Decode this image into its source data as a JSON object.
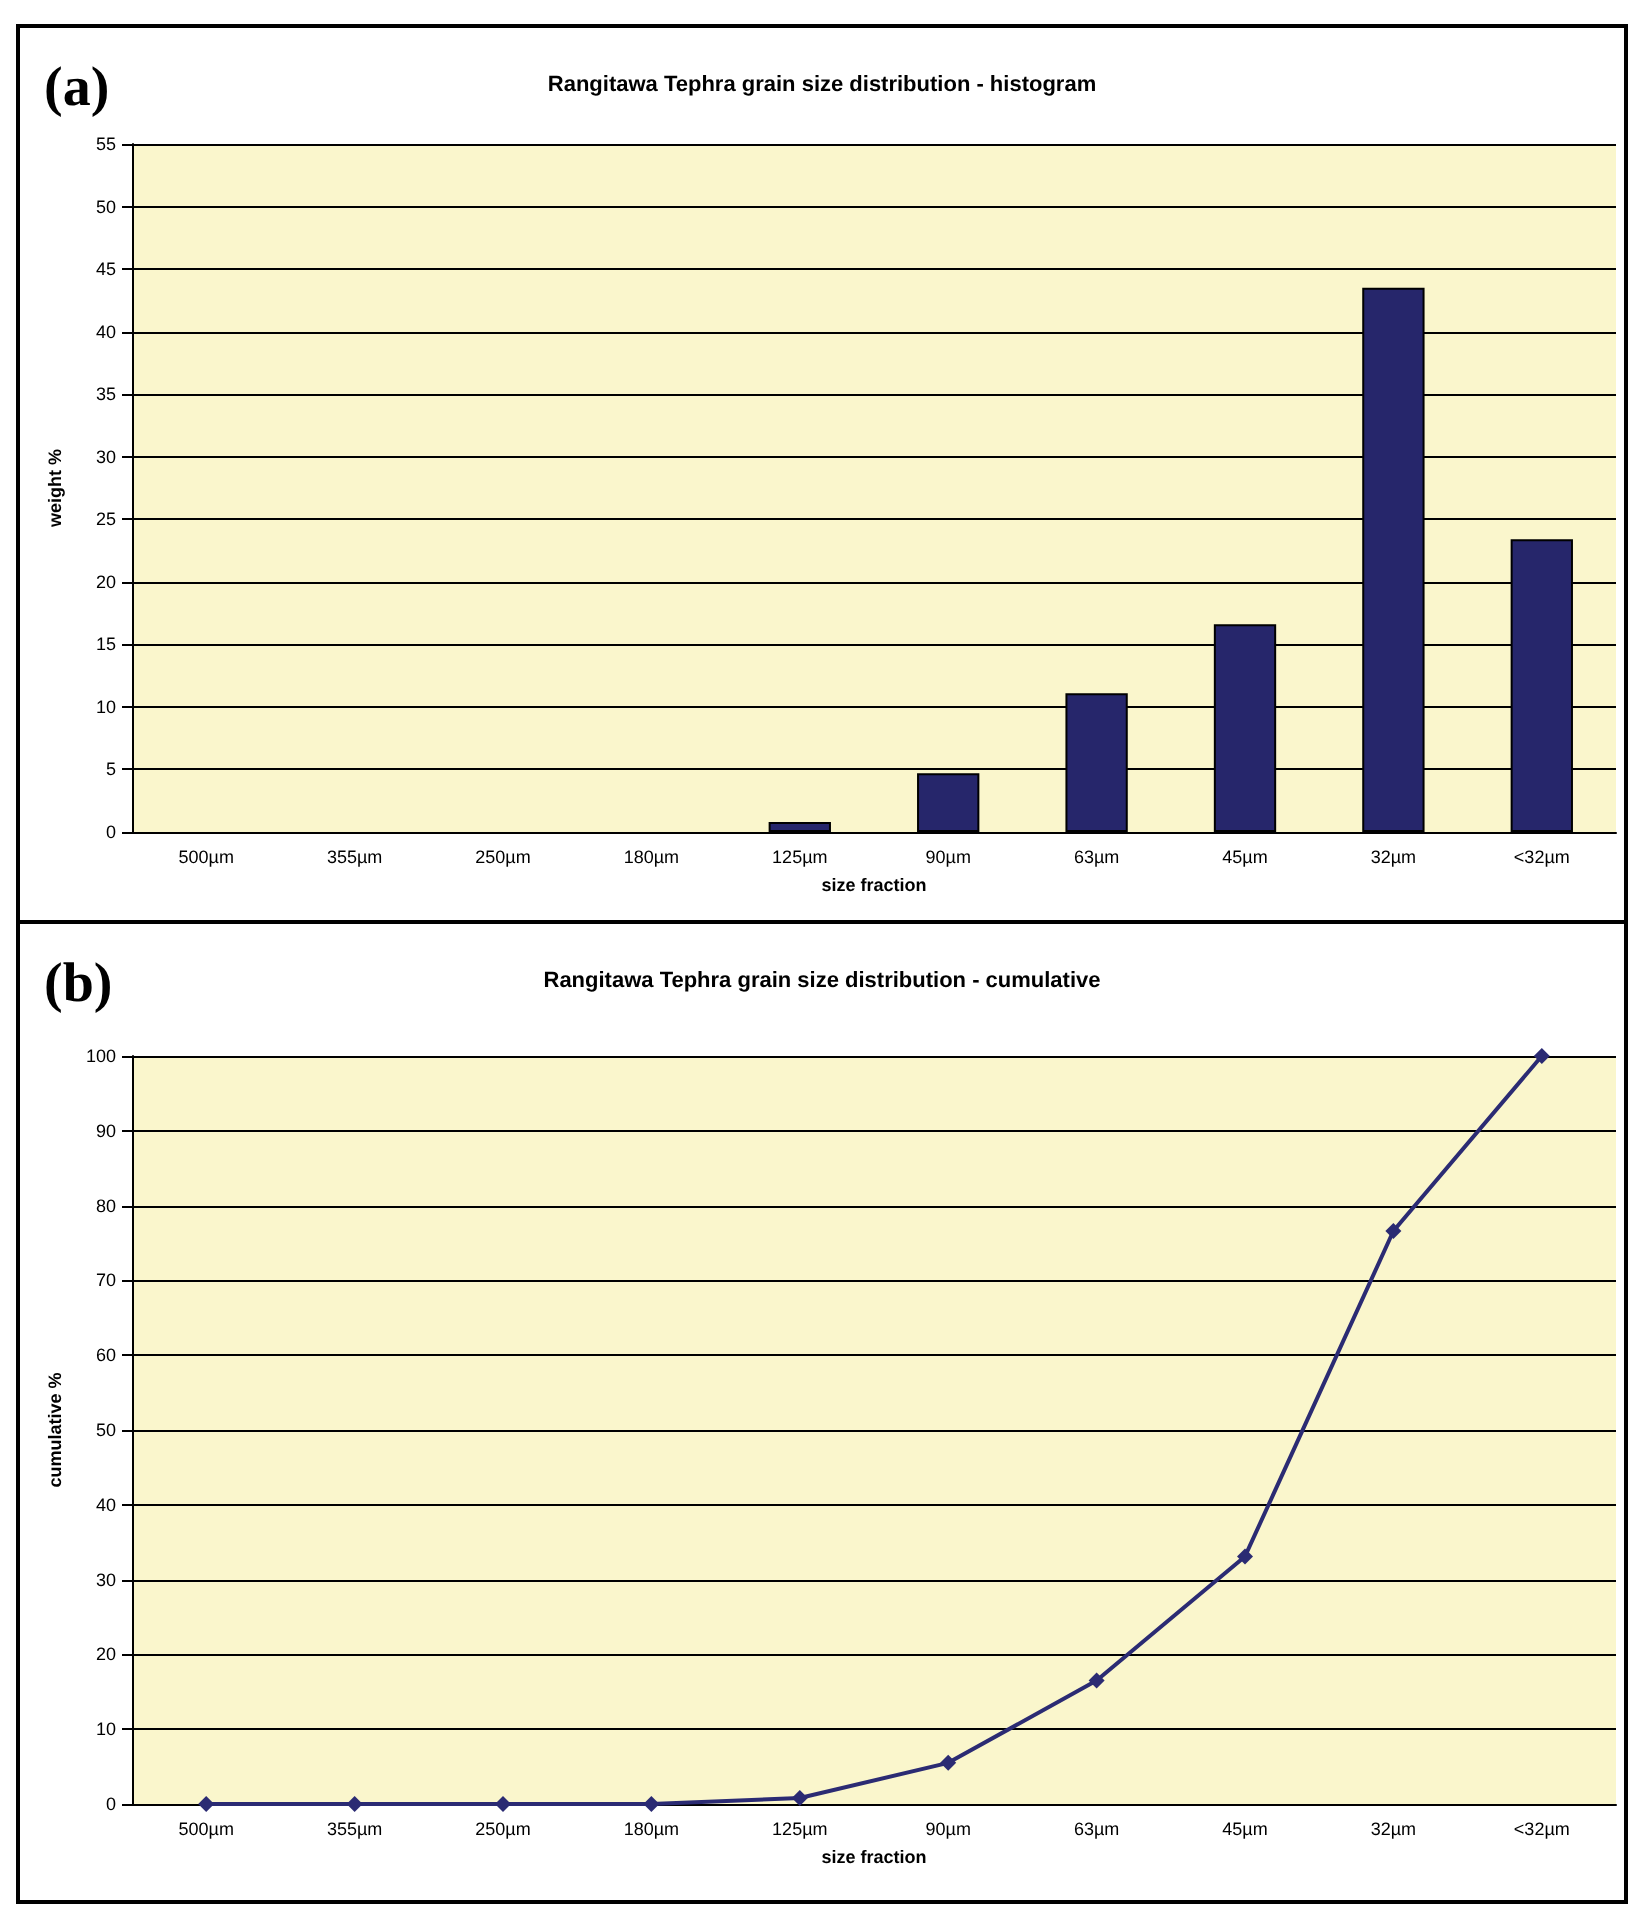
{
  "chart_data": [
    {
      "type": "bar",
      "title": "Rangitawa Tephra grain size distribution - histogram",
      "xlabel": "size fraction",
      "ylabel": "weight %",
      "annotations": [
        "(a)"
      ],
      "categories": [
        "500µm",
        "355µm",
        "250µm",
        "180µm",
        "125µm",
        "90µm",
        "63µm",
        "45µm",
        "32µm",
        "<32µm"
      ],
      "values": [
        0,
        0,
        0,
        0,
        0.8,
        4.7,
        11.1,
        16.6,
        43.5,
        23.4
      ],
      "color": "#26266b",
      "ylim": [
        0,
        55
      ],
      "yticks": [
        0,
        5,
        10,
        15,
        20,
        25,
        30,
        35,
        40,
        45,
        50,
        55
      ],
      "grid": "y"
    },
    {
      "type": "line",
      "title": "Rangitawa Tephra grain size distribution - cumulative",
      "xlabel": "size fraction",
      "ylabel": "cumulative %",
      "annotations": [
        "(b)"
      ],
      "categories": [
        "500µm",
        "355µm",
        "250µm",
        "180µm",
        "125µm",
        "90µm",
        "63µm",
        "45µm",
        "32µm",
        "<32µm"
      ],
      "values": [
        0,
        0,
        0,
        0,
        0.8,
        5.5,
        16.5,
        33.1,
        76.6,
        100
      ],
      "color": "#2b2b73",
      "ylim": [
        0,
        100
      ],
      "yticks": [
        0,
        10,
        20,
        30,
        40,
        50,
        60,
        70,
        80,
        90,
        100
      ],
      "grid": "y",
      "marker": "diamond",
      "line_style": "solid"
    }
  ]
}
